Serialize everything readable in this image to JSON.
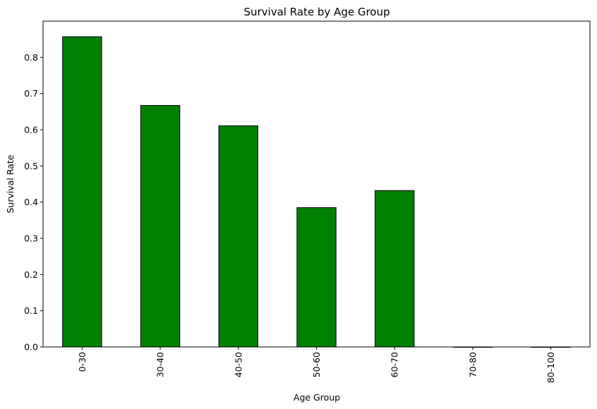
{
  "chart_data": {
    "type": "bar",
    "title": "Survival Rate by Age Group",
    "xlabel": "Age Group",
    "ylabel": "Survival Rate",
    "categories": [
      "0-30",
      "30-40",
      "40-50",
      "50-60",
      "60-70",
      "70-80",
      "80-100"
    ],
    "values": [
      0.857,
      0.667,
      0.611,
      0.385,
      0.432,
      0.0,
      0.0
    ],
    "ylim": [
      0,
      0.9
    ],
    "yticks": [
      "0.0",
      "0.1",
      "0.2",
      "0.3",
      "0.4",
      "0.5",
      "0.6",
      "0.7",
      "0.8"
    ],
    "bar_color": "#008000",
    "edge_color": "#000000",
    "grid": false,
    "legend": "none",
    "xtick_rotation": "vertical"
  }
}
